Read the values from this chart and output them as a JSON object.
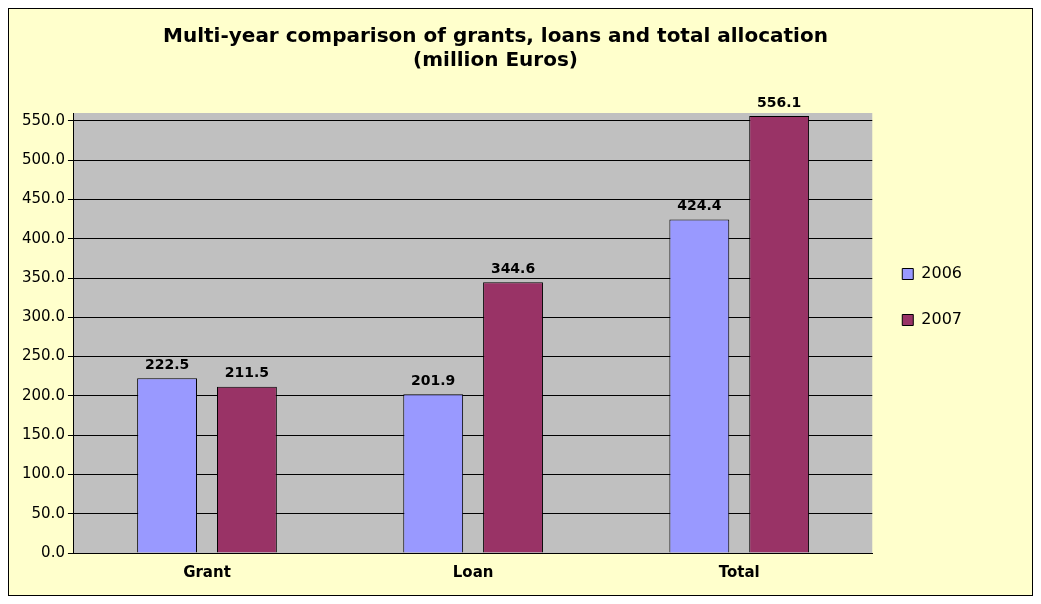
{
  "chart_data": {
    "type": "bar",
    "title": [
      "Multi-year comparison of grants, loans and total allocation",
      "(million Euros)"
    ],
    "categories": [
      "Grant",
      "Loan",
      "Total"
    ],
    "series": [
      {
        "name": "2006",
        "color": "#9999ff",
        "values": [
          222.5,
          201.9,
          424.4
        ]
      },
      {
        "name": "2007",
        "color": "#993366",
        "values": [
          211.5,
          344.6,
          556.1
        ]
      }
    ],
    "ylim": [
      0,
      560
    ],
    "yticks": [
      {
        "value": 0,
        "label": "0.0"
      },
      {
        "value": 50,
        "label": "50.0"
      },
      {
        "value": 100,
        "label": "100.0"
      },
      {
        "value": 150,
        "label": "150.0"
      },
      {
        "value": 200,
        "label": "200.0"
      },
      {
        "value": 250,
        "label": "250.0"
      },
      {
        "value": 300,
        "label": "300.0"
      },
      {
        "value": 350,
        "label": "350.0"
      },
      {
        "value": 400,
        "label": "400.0"
      },
      {
        "value": 450,
        "label": "450.0"
      },
      {
        "value": 500,
        "label": "500.0"
      },
      {
        "value": 550,
        "label": "550.0"
      }
    ],
    "grid": "y",
    "legend": "right",
    "data_labels": true
  }
}
